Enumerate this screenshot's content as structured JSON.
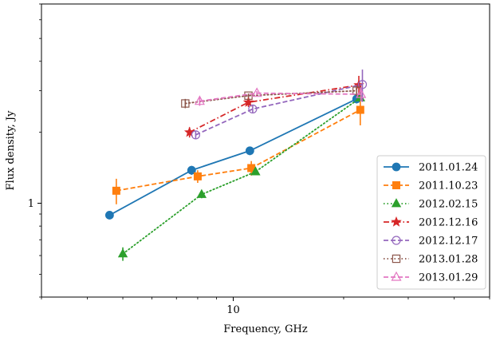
{
  "chart_data": {
    "type": "line",
    "xlabel": "Frequency, GHz",
    "ylabel": "Flux density, Jy",
    "x_scale": "log",
    "y_scale": "log",
    "xlim": [
      3,
      50
    ],
    "ylim": [
      0.4,
      7
    ],
    "x_tick_labels": [
      {
        "value": 10,
        "label": "10"
      }
    ],
    "y_tick_labels": [
      {
        "value": 1,
        "label": "1"
      }
    ],
    "legend_position": "lower-right",
    "grid": false,
    "series": [
      {
        "name": "2011.01.24",
        "color": "#1f77b4",
        "linestyle": "solid",
        "marker": "circle-filled",
        "x": [
          4.6,
          7.7,
          11.1,
          21.7
        ],
        "y": [
          0.89,
          1.38,
          1.67,
          2.77
        ],
        "yerr": [
          0.03,
          0.06,
          0.07,
          0.12
        ]
      },
      {
        "name": "2011.10.23",
        "color": "#ff7f0e",
        "linestyle": "dashed",
        "marker": "square-filled",
        "x": [
          4.8,
          8.0,
          11.2,
          22.2
        ],
        "y": [
          1.13,
          1.3,
          1.41,
          2.49
        ],
        "yerr": [
          0.14,
          0.08,
          0.1,
          0.35
        ]
      },
      {
        "name": "2012.02.15",
        "color": "#2ca02c",
        "linestyle": "dotted",
        "marker": "triangle-filled",
        "x": [
          5.0,
          8.2,
          11.5,
          22.2
        ],
        "y": [
          0.61,
          1.09,
          1.36,
          2.8
        ],
        "yerr": [
          0.04,
          0.04,
          0.04,
          0.08
        ]
      },
      {
        "name": "2012.12.16",
        "color": "#d62728",
        "linestyle": "dashdot",
        "marker": "star-filled",
        "x": [
          7.6,
          11.0,
          22.0
        ],
        "y": [
          2.0,
          2.68,
          3.17
        ],
        "yerr": [
          0.1,
          0.12,
          0.3
        ]
      },
      {
        "name": "2012.12.17",
        "color": "#9467bd",
        "linestyle": "dashed",
        "marker": "circle-open",
        "x": [
          7.9,
          11.3,
          22.5
        ],
        "y": [
          1.95,
          2.51,
          3.19
        ],
        "yerr": [
          0.08,
          0.1,
          0.5
        ]
      },
      {
        "name": "2013.01.28",
        "color": "#8c564b",
        "linestyle": "dotted",
        "marker": "square-open",
        "x": [
          7.4,
          11.0,
          21.7
        ],
        "y": [
          2.65,
          2.86,
          3.0
        ],
        "yerr": [
          0.12,
          0.06,
          0.15
        ]
      },
      {
        "name": "2013.01.29",
        "color": "#e377c2",
        "linestyle": "dashed",
        "marker": "triangle-open",
        "x": [
          8.1,
          11.6,
          22.3
        ],
        "y": [
          2.71,
          2.93,
          2.9
        ],
        "yerr": [
          0.12,
          0.06,
          0.2
        ]
      }
    ]
  }
}
